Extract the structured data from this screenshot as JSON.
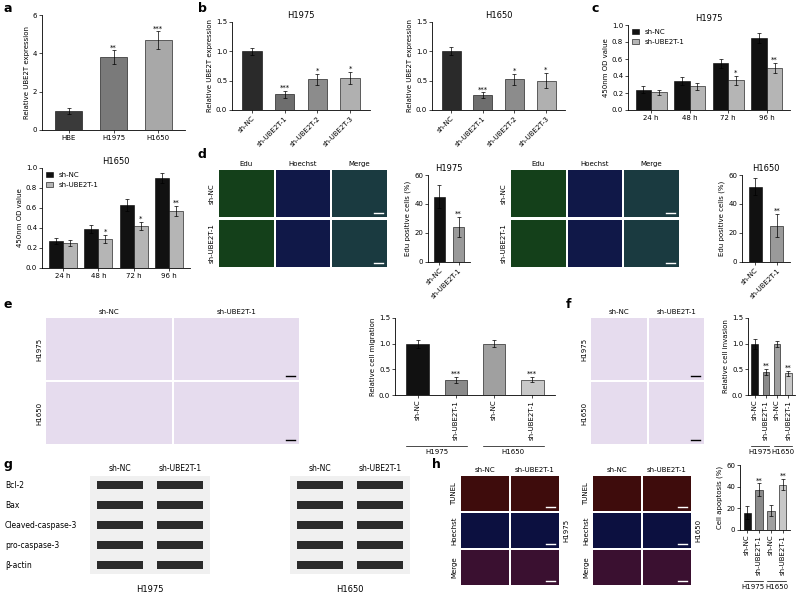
{
  "panel_labels": [
    "a",
    "b",
    "c",
    "d",
    "e",
    "f",
    "g",
    "h"
  ],
  "chart_data": [
    {
      "type": "bar",
      "y_label": "Relative UBE2T expression",
      "categories": [
        "HBE",
        "H1975",
        "H1650"
      ],
      "values": [
        1.0,
        3.8,
        4.7
      ],
      "errors": [
        0.15,
        0.35,
        0.45
      ],
      "significance": [
        null,
        "**",
        "***"
      ],
      "colors": [
        "#3a3a3a",
        "#7a7a7a",
        "#a8a8a8"
      ],
      "ylim": [
        0,
        6
      ],
      "yticks": [
        0,
        2,
        4,
        6
      ]
    },
    {
      "type": "bar",
      "title": "H1975",
      "y_label": "Relative UBE2T expression",
      "categories": [
        "sh-NC",
        "sh-UBE2T-1",
        "sh-UBE2T-2",
        "sh-UBE2T-3"
      ],
      "values": [
        1.0,
        0.27,
        0.52,
        0.55
      ],
      "errors": [
        0.06,
        0.06,
        0.1,
        0.1
      ],
      "significance": [
        null,
        "***",
        "*",
        "*"
      ],
      "colors": [
        "#2a2a2a",
        "#6e6e6e",
        "#8c8c8c",
        "#b0b0b0"
      ],
      "ylim": [
        0,
        1.5
      ],
      "yticks": [
        {
          "value": 0,
          "label": "0.0"
        },
        0.5,
        {
          "value": 1,
          "label": "1.0"
        },
        1.5
      ]
    },
    {
      "type": "bar",
      "title": "H1650",
      "y_label": "Relative UBE2T expression",
      "categories": [
        "sh-NC",
        "sh-UBE2T-1",
        "sh-UBE2T-2",
        "sh-UBE2T-3"
      ],
      "values": [
        1.0,
        0.25,
        0.52,
        0.5
      ],
      "errors": [
        0.07,
        0.05,
        0.1,
        0.13
      ],
      "significance": [
        null,
        "***",
        "*",
        "*"
      ],
      "colors": [
        "#2a2a2a",
        "#6e6e6e",
        "#8c8c8c",
        "#b0b0b0"
      ],
      "ylim": [
        0,
        1.5
      ],
      "yticks": [
        {
          "value": 0,
          "label": "0.0"
        },
        0.5,
        {
          "value": 1,
          "label": "1.0"
        },
        1.5
      ]
    },
    {
      "type": "bar",
      "title": "H1975",
      "y_label": "450nm OD value",
      "categories": [
        "24 h",
        "48 h",
        "72 h",
        "96 h"
      ],
      "series": [
        {
          "name": "sh-NC",
          "color": "#111111",
          "values": [
            0.24,
            0.34,
            0.55,
            0.85
          ],
          "errors": [
            0.04,
            0.05,
            0.05,
            0.06
          ]
        },
        {
          "name": "sh-UBE2T-1",
          "color": "#b5b5b5",
          "values": [
            0.21,
            0.28,
            0.35,
            0.49
          ],
          "errors": [
            0.03,
            0.04,
            0.05,
            0.06
          ],
          "significance": [
            null,
            null,
            "*",
            "**"
          ]
        }
      ],
      "legend": "upper left",
      "ylim": [
        0,
        1
      ],
      "yticks": [
        {
          "value": 0,
          "label": "0.0"
        },
        0.2,
        0.4,
        0.6,
        0.8,
        {
          "value": 1,
          "label": "1.0"
        }
      ]
    },
    {
      "type": "bar",
      "title": "H1650",
      "y_label": "450nm OD value",
      "categories": [
        "24 h",
        "48 h",
        "72 h",
        "96 h"
      ],
      "series": [
        {
          "name": "sh-NC",
          "color": "#111111",
          "values": [
            0.27,
            0.39,
            0.63,
            0.9
          ],
          "errors": [
            0.03,
            0.04,
            0.06,
            0.05
          ]
        },
        {
          "name": "sh-UBE2T-1",
          "color": "#b5b5b5",
          "values": [
            0.25,
            0.29,
            0.42,
            0.57
          ],
          "errors": [
            0.03,
            0.04,
            0.04,
            0.05
          ],
          "significance": [
            null,
            "*",
            "*",
            "**"
          ]
        }
      ],
      "legend": "upper left",
      "ylim": [
        0,
        1
      ],
      "yticks": [
        {
          "value": 0,
          "label": "0.0"
        },
        0.2,
        0.4,
        0.6,
        0.8,
        {
          "value": 1,
          "label": "1.0"
        }
      ]
    },
    {
      "type": "bar",
      "title": "H1975",
      "y_label": "Edu positive cells (%)",
      "categories": [
        "sh-NC",
        "sh-UBE2T-1"
      ],
      "values": [
        45,
        24
      ],
      "errors": [
        8,
        7
      ],
      "significance": [
        null,
        "**"
      ],
      "colors": [
        "#111111",
        "#9a9a9a"
      ],
      "ylim": [
        0,
        60
      ],
      "yticks": [
        0,
        20,
        40,
        60
      ]
    },
    {
      "type": "bar",
      "title": "H1650",
      "y_label": "Edu positive cells (%)",
      "categories": [
        "sh-NC",
        "sh-UBE2T-1"
      ],
      "values": [
        52,
        25
      ],
      "errors": [
        6,
        8
      ],
      "significance": [
        null,
        "**"
      ],
      "colors": [
        "#111111",
        "#9a9a9a"
      ],
      "ylim": [
        0,
        60
      ],
      "yticks": [
        0,
        20,
        40,
        60
      ]
    },
    {
      "type": "bar",
      "y_label": "Relative cell migration",
      "categories": [
        "sh-NC",
        "sh-UBE2T-1",
        "sh-NC",
        "sh-UBE2T-1"
      ],
      "values": [
        1.0,
        0.3,
        1.0,
        0.3
      ],
      "errors": [
        0.08,
        0.06,
        0.07,
        0.05
      ],
      "significance": [
        null,
        "***",
        null,
        "***"
      ],
      "colors": [
        "#111111",
        "#8a8a8a",
        "#a0a0a0",
        "#c8c8c8"
      ],
      "group_labels": [
        "H1975",
        "H1650"
      ],
      "ylim": [
        0,
        1.5
      ],
      "yticks": [
        {
          "value": 0,
          "label": "0.0"
        },
        0.5,
        {
          "value": 1,
          "label": "1.0"
        },
        1.5
      ]
    },
    {
      "type": "bar",
      "y_label": "Relative cell invasion",
      "categories": [
        "sh-NC",
        "sh-UBE2T-1",
        "sh-NC",
        "sh-UBE2T-1"
      ],
      "values": [
        1.0,
        0.45,
        1.0,
        0.42
      ],
      "errors": [
        0.1,
        0.06,
        0.06,
        0.05
      ],
      "significance": [
        null,
        "**",
        null,
        "**"
      ],
      "colors": [
        "#111111",
        "#8a8a8a",
        "#a0a0a0",
        "#c8c8c8"
      ],
      "group_labels": [
        "H1975",
        "H1650"
      ],
      "ylim": [
        0,
        1.5
      ],
      "yticks": [
        {
          "value": 0,
          "label": "0.0"
        },
        0.5,
        {
          "value": 1,
          "label": "1.0"
        },
        1.5
      ]
    },
    {
      "type": "bar",
      "y_label": "Cell apoptosis (%)",
      "categories": [
        "sh-NC",
        "sh-UBE2T-1",
        "sh-NC",
        "sh-UBE2T-1"
      ],
      "values": [
        16,
        37,
        18,
        42
      ],
      "errors": [
        6,
        6,
        5,
        5
      ],
      "significance": [
        null,
        "**",
        null,
        "**"
      ],
      "colors": [
        "#111111",
        "#8a8a8a",
        "#a0a0a0",
        "#c8c8c8"
      ],
      "group_labels": [
        "H1975",
        "H1650"
      ],
      "ylim": [
        0,
        60
      ],
      "yticks": [
        0,
        20,
        40,
        60
      ]
    }
  ],
  "image_panels": [
    {
      "columns": [
        "Edu",
        "Hoechst",
        "Merge"
      ],
      "rows": [
        "sh-NC",
        "sh-UBE2T-1"
      ]
    },
    {
      "columns": [
        "Edu",
        "Hoechst",
        "Merge"
      ],
      "rows": [
        "sh-NC",
        "sh-UBE2T-1"
      ]
    },
    {
      "columns": [
        "sh-NC",
        "sh-UBE2T-1"
      ],
      "rows": [
        "H1975",
        "H1650"
      ]
    },
    {
      "columns": [
        "sh-NC",
        "sh-UBE2T-1"
      ],
      "rows": [
        "H1975",
        "H1650"
      ]
    },
    {
      "columns": [
        "sh-NC",
        "sh-UBE2T-1"
      ],
      "rows": [
        "TUNEL",
        "Hoechst",
        "Merge"
      ],
      "side_label": "H1975"
    },
    {
      "columns": [
        "sh-NC",
        "sh-UBE2T-1"
      ],
      "rows": [
        "TUNEL",
        "Hoechst",
        "Merge"
      ],
      "side_label": "H1650"
    }
  ],
  "western_blot": {
    "proteins": [
      "Bcl-2",
      "Bax",
      "Cleaved-caspase-3",
      "pro-caspase-3",
      "β-actin"
    ],
    "lanes": [
      "sh-NC",
      "sh-UBE2T-1"
    ],
    "cell_lines": [
      "H1975",
      "H1650"
    ]
  }
}
